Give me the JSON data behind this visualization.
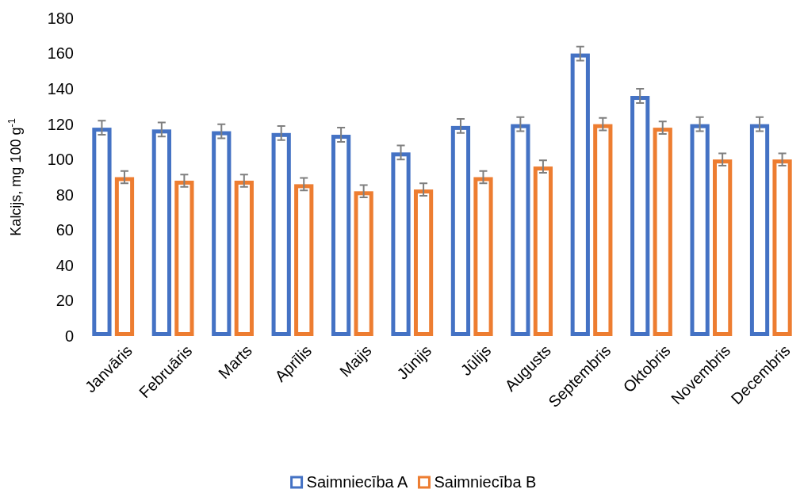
{
  "chart_data": {
    "type": "bar",
    "ylabel": "Kalcijs, mg 100 g$^{-1}$",
    "categories": [
      "Janvāris",
      "Februāris",
      "Marts",
      "Aprīlis",
      "Maijs",
      "Jūnijs",
      "Jūlijs",
      "Augusts",
      "Septembris",
      "Oktobris",
      "Novembris",
      "Decembris"
    ],
    "series": [
      {
        "name": "Saimniecība A",
        "color": "#4472c4",
        "values": [
          118,
          117,
          116,
          115,
          114,
          104,
          119,
          120,
          160,
          136,
          120,
          120
        ],
        "errors": [
          4,
          4,
          4,
          4,
          4,
          4,
          4,
          4,
          4,
          4,
          4,
          4
        ]
      },
      {
        "name": "Saimniecība B",
        "color": "#ed7d31",
        "values": [
          90,
          88,
          88,
          86,
          82,
          83,
          90,
          96,
          120,
          118,
          100,
          100
        ],
        "errors": [
          3.5,
          3.5,
          3.5,
          3.5,
          3.5,
          3.5,
          3.5,
          3.5,
          3.5,
          3.5,
          3.5,
          3.5
        ]
      }
    ],
    "ylim": [
      0,
      180
    ],
    "yticks": [
      0,
      20,
      40,
      60,
      80,
      100,
      120,
      140,
      160,
      180
    ],
    "grid": false,
    "legend": "bottom"
  }
}
